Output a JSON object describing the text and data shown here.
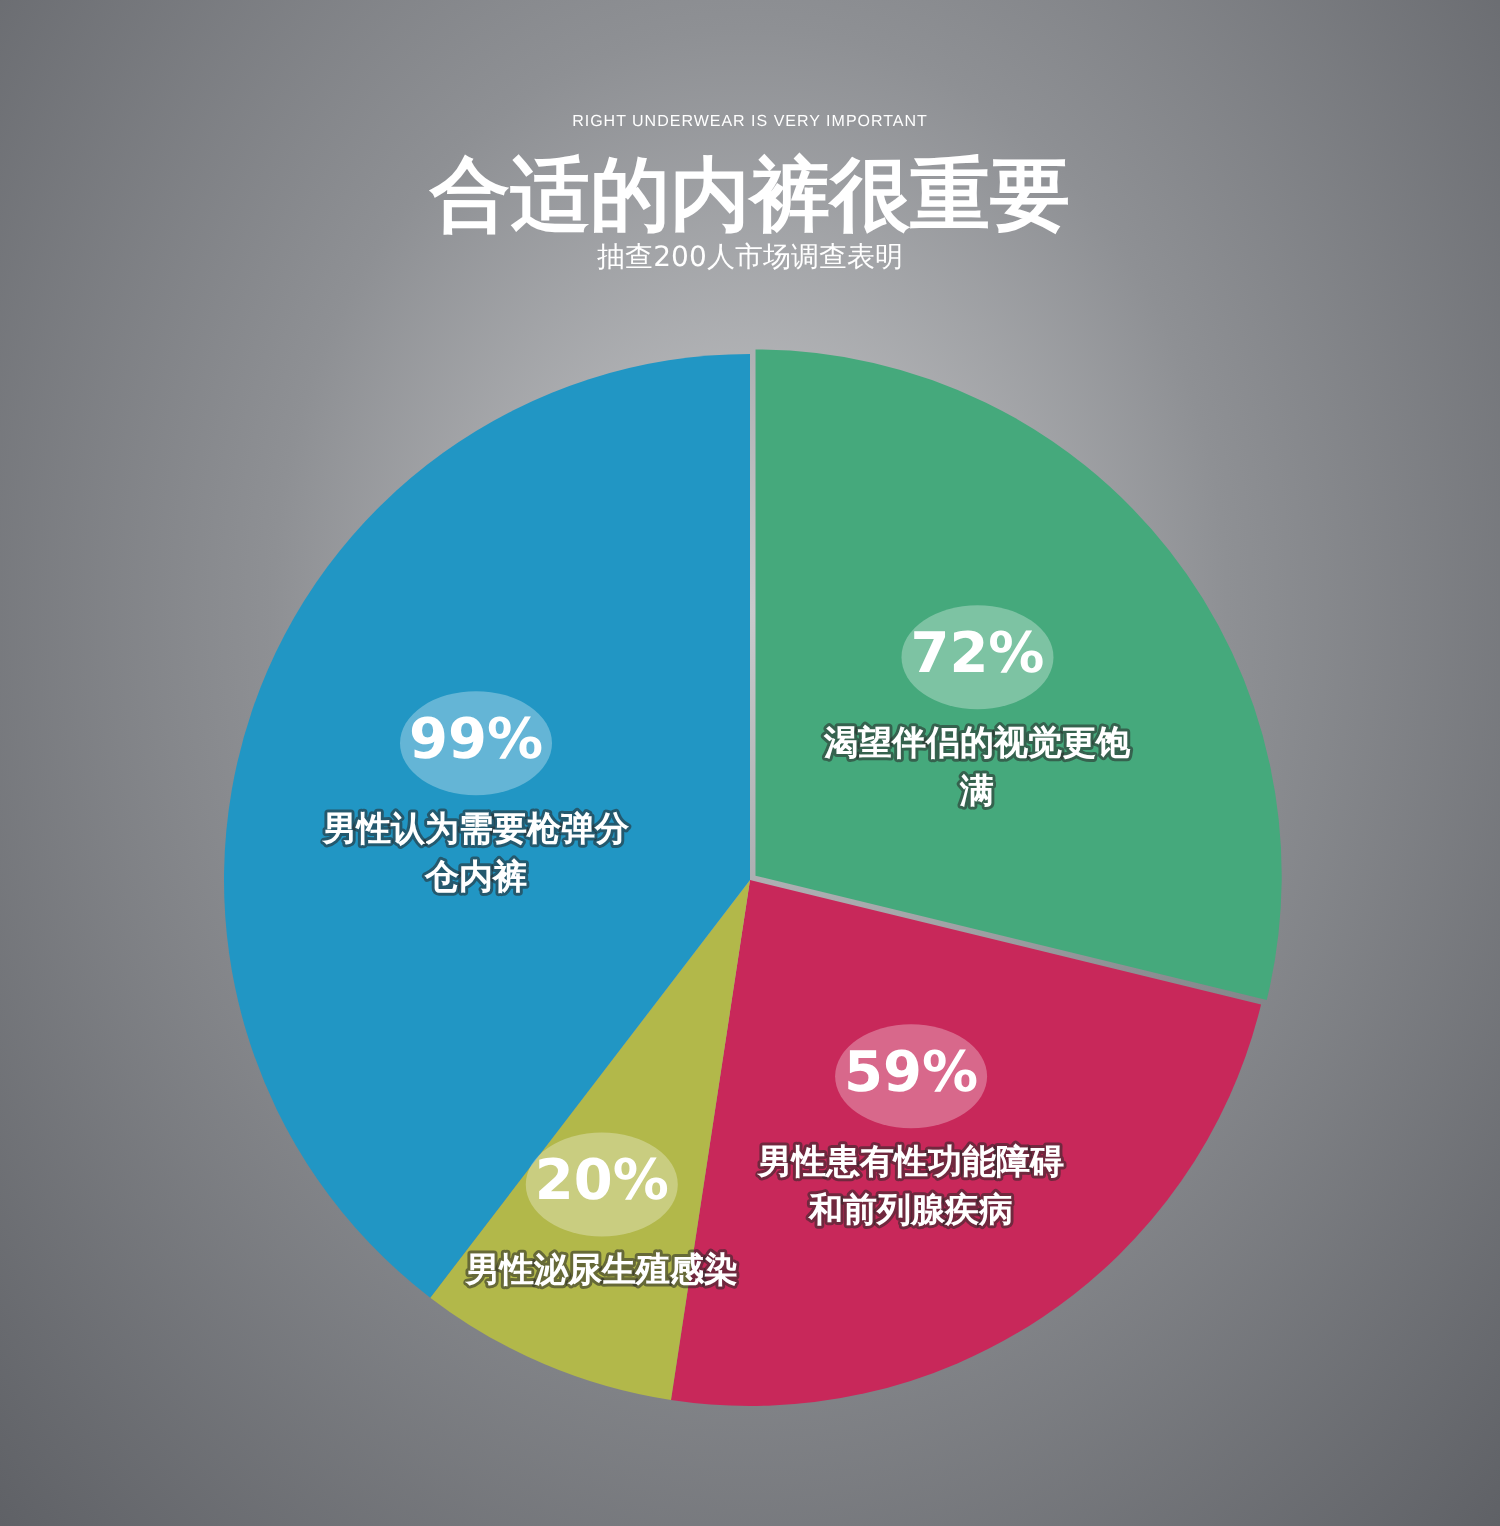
{
  "chart_data": {
    "type": "pie",
    "title": "合适的内裤很重要",
    "subtitle": "抽查200人市场调查表明",
    "annotations": [
      "RIGHT UNDERWEAR IS VERY IMPORTANT"
    ],
    "categories": [
      "渴望伴侣的视觉更饱满",
      "男性患有性功能障碍和前列腺疾病",
      "男性泌尿生殖感染",
      "男性认为需要枪弹分仓内裤"
    ],
    "values": [
      72,
      59,
      20,
      99
    ],
    "value_labels": [
      "72%",
      "59%",
      "20%",
      "99%"
    ],
    "colors": [
      "#45a97c",
      "#c8285a",
      "#b2b84a",
      "#2196c4"
    ],
    "legend": false
  }
}
